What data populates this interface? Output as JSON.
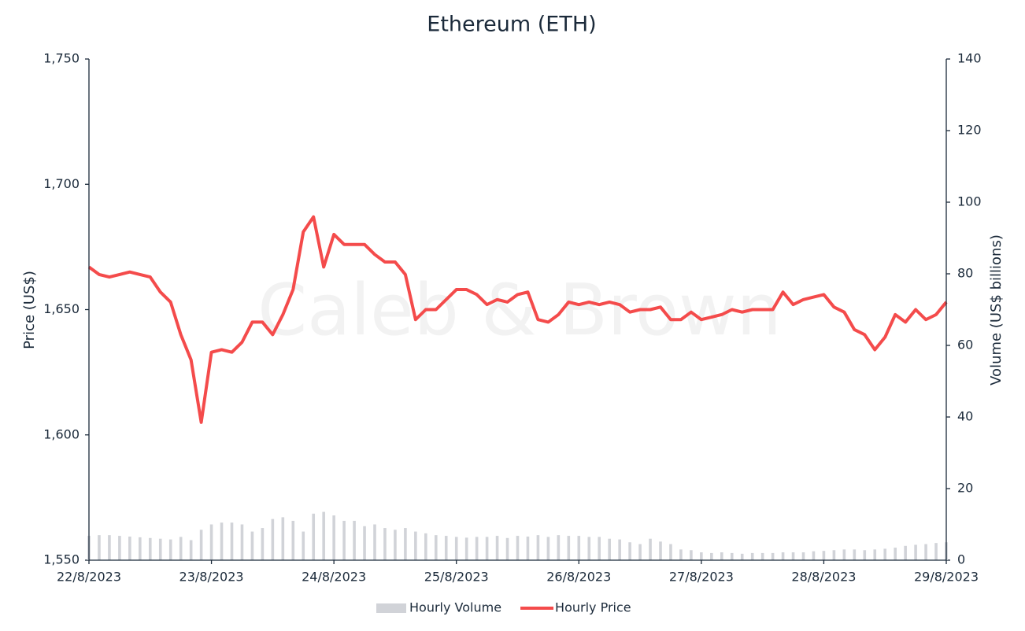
{
  "chart_data": {
    "type": "combo",
    "title": "Ethereum (ETH)",
    "watermark": "Caleb & Brown",
    "y_label": "Price (US$)",
    "y2_label": "Volume (US$ billions)",
    "categories": [
      "22/8/2023",
      null,
      null,
      null,
      null,
      null,
      null,
      null,
      null,
      null,
      null,
      null,
      "23/8/2023",
      null,
      null,
      null,
      null,
      null,
      null,
      null,
      null,
      null,
      null,
      null,
      "24/8/2023",
      null,
      null,
      null,
      null,
      null,
      null,
      null,
      null,
      null,
      null,
      null,
      "25/8/2023",
      null,
      null,
      null,
      null,
      null,
      null,
      null,
      null,
      null,
      null,
      null,
      "26/8/2023",
      null,
      null,
      null,
      null,
      null,
      null,
      null,
      null,
      null,
      null,
      null,
      "27/8/2023",
      null,
      null,
      null,
      null,
      null,
      null,
      null,
      null,
      null,
      null,
      null,
      "28/8/2023",
      null,
      null,
      null,
      null,
      null,
      null,
      null,
      null,
      null,
      null,
      null,
      "29/8/2023"
    ],
    "series": [
      {
        "name": "Hourly Volume",
        "type": "bar",
        "axis": "y2",
        "color": "#d1d3d8",
        "values": [
          6.8,
          7,
          7,
          6.8,
          6.6,
          6.4,
          6.2,
          6,
          5.8,
          6.5,
          5.6,
          8.5,
          10,
          10.5,
          10.5,
          10,
          8,
          9,
          11.5,
          12,
          11,
          8,
          13,
          13.5,
          12.5,
          11,
          11,
          9.5,
          10,
          9,
          8.5,
          9,
          8,
          7.5,
          7,
          6.8,
          6.5,
          6.3,
          6.5,
          6.5,
          6.8,
          6.2,
          6.8,
          6.6,
          7,
          6.5,
          7,
          6.8,
          6.8,
          6.5,
          6.5,
          6,
          5.8,
          5,
          4.5,
          6,
          5.2,
          4.5,
          3,
          2.8,
          2.2,
          2,
          2.2,
          2,
          1.8,
          2,
          2,
          2,
          2.2,
          2.2,
          2.2,
          2.5,
          2.6,
          2.8,
          3,
          3,
          2.8,
          3,
          3.2,
          3.5,
          4,
          4.3,
          4.5,
          4.8,
          5
        ]
      },
      {
        "name": "Hourly Price",
        "type": "line",
        "color": "#f44b4b",
        "values": [
          1667,
          1664,
          1663,
          1664,
          1665,
          1664,
          1663,
          1657,
          1653,
          1640,
          1630,
          1605,
          1633,
          1634,
          1633,
          1637,
          1645,
          1645,
          1640,
          1648,
          1658,
          1681,
          1687,
          1667,
          1680,
          1676,
          1676,
          1676,
          1672,
          1669,
          1669,
          1664,
          1646,
          1650,
          1650,
          1654,
          1658,
          1658,
          1656,
          1652,
          1654,
          1653,
          1656,
          1657,
          1646,
          1645,
          1648,
          1653,
          1652,
          1653,
          1652,
          1653,
          1652,
          1649,
          1650,
          1650,
          1651,
          1646,
          1646,
          1649,
          1646,
          1647,
          1648,
          1650,
          1649,
          1650,
          1650,
          1650,
          1657,
          1652,
          1654,
          1655,
          1656,
          1651,
          1649,
          1642,
          1640,
          1634,
          1639,
          1648,
          1645,
          1650,
          1646,
          1648,
          1653
        ]
      }
    ],
    "ylim": [
      1550,
      1750
    ],
    "yticks": [
      {
        "value": 1550,
        "label": "1,550"
      },
      {
        "value": 1600,
        "label": "1,600"
      },
      {
        "value": 1650,
        "label": "1,650"
      },
      {
        "value": 1700,
        "label": "1,700"
      },
      {
        "value": 1750,
        "label": "1,750"
      }
    ],
    "y2lim": [
      0,
      140
    ],
    "y2ticks": [
      0,
      20,
      40,
      60,
      80,
      100,
      120,
      140
    ],
    "legend": "bottom"
  }
}
